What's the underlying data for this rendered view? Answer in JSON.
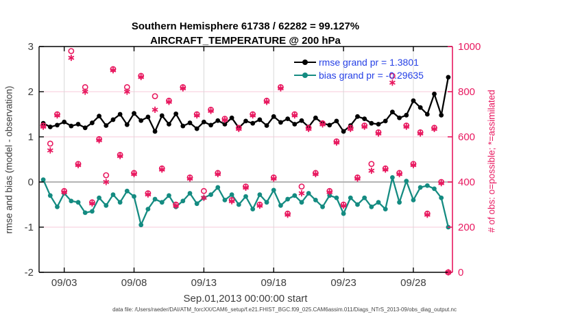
{
  "title": {
    "line1": "Southern Hemisphere 61738 / 62282 = 99.127%",
    "line2": "AIRCRAFT_TEMPERATURE @ 200 hPa"
  },
  "footer": {
    "data_file": "data file: /Users/raeder/DAI/ATM_forcXX/CAM6_setup/f.e21.FHIST_BGC.f09_025.CAM6assim.011/Diags_NTrS_2013-09/obs_diag_output.nc"
  },
  "colors": {
    "rmse": "#000000",
    "bias": "#148b81",
    "obs_pink": "#e8185f",
    "legend_text": "#2540e6",
    "grid_pink": "#f7c9d9",
    "grid_gray": "#d8d8d8",
    "zero_line": "#b3b3b3",
    "tick_text": "#3c3c3c"
  },
  "legend": {
    "items": [
      {
        "name": "rmse",
        "label": "rmse grand pr = 1.3801"
      },
      {
        "name": "bias",
        "label": "bias grand pr = -0.29635"
      }
    ]
  },
  "chart_data": {
    "type": "line",
    "title": "Southern Hemisphere 61738 / 62282 = 99.127% | AIRCRAFT_TEMPERATURE @ 200 hPa",
    "x_axis": {
      "label": "Sep.01,2013 00:00:00 start",
      "tick_labels": [
        "09/03",
        "09/08",
        "09/13",
        "09/18",
        "09/23",
        "09/28"
      ],
      "tick_days": [
        2,
        7,
        12,
        17,
        22,
        27
      ],
      "domain_days": [
        0.2,
        29.8
      ],
      "x_start_day": 0.5,
      "x_step_day": 0.5
    },
    "y_left": {
      "label": "rmse and bias (model - observation)",
      "ticks": [
        3,
        2,
        1,
        0,
        -1,
        -2
      ],
      "range": [
        -2,
        3
      ]
    },
    "y_right": {
      "label": "# of obs: o=possible; *=assimilated",
      "ticks": [
        1000,
        800,
        600,
        400,
        200,
        0
      ],
      "range": [
        0,
        1000
      ]
    },
    "series": [
      {
        "name": "rmse",
        "axis": "left",
        "marker": "dot",
        "values": [
          1.3,
          1.22,
          1.26,
          1.33,
          1.24,
          1.28,
          1.2,
          1.31,
          1.46,
          1.25,
          1.38,
          1.5,
          1.27,
          1.52,
          1.36,
          1.44,
          1.12,
          1.47,
          1.28,
          1.51,
          1.24,
          1.31,
          1.18,
          1.33,
          1.26,
          1.36,
          1.28,
          1.42,
          1.2,
          1.35,
          1.3,
          1.38,
          1.25,
          1.45,
          1.32,
          1.4,
          1.28,
          1.36,
          1.22,
          1.42,
          1.3,
          1.26,
          1.35,
          1.12,
          1.25,
          1.45,
          1.4,
          1.3,
          1.28,
          1.35,
          1.55,
          1.42,
          1.48,
          1.8,
          1.65,
          1.5,
          1.95,
          1.48,
          2.32
        ]
      },
      {
        "name": "bias",
        "axis": "left",
        "marker": "dot",
        "values": [
          0.05,
          -0.3,
          -0.55,
          -0.25,
          -0.42,
          -0.45,
          -0.68,
          -0.65,
          -0.35,
          -0.52,
          -0.28,
          -0.45,
          -0.2,
          -0.32,
          -0.95,
          -0.6,
          -0.38,
          -0.45,
          -0.3,
          -0.55,
          -0.42,
          -0.25,
          -0.48,
          -0.35,
          -0.28,
          -0.12,
          -0.4,
          -0.28,
          -0.5,
          -0.32,
          -0.6,
          -0.28,
          -0.45,
          -0.18,
          -0.52,
          -0.38,
          -0.3,
          -0.45,
          -0.25,
          -0.4,
          -0.55,
          -0.3,
          -0.35,
          -0.7,
          -0.35,
          -0.5,
          -0.35,
          -0.55,
          -0.45,
          -0.6,
          0.1,
          -0.45,
          0.02,
          -0.4,
          -0.12,
          -0.08,
          -0.15,
          -0.35,
          -1.0
        ]
      },
      {
        "name": "possible",
        "axis": "right",
        "marker": "open-circle",
        "values": [
          650,
          570,
          700,
          360,
          980,
          480,
          820,
          310,
          590,
          430,
          900,
          520,
          820,
          440,
          870,
          350,
          780,
          460,
          760,
          300,
          820,
          420,
          700,
          360,
          720,
          440,
          680,
          320,
          640,
          380,
          700,
          300,
          760,
          420,
          820,
          260,
          700,
          380,
          640,
          440,
          660,
          360,
          580,
          300,
          640,
          420,
          650,
          480,
          620,
          460,
          870,
          440,
          650,
          480,
          620,
          260,
          640,
          400,
          0
        ]
      },
      {
        "name": "assimilated",
        "axis": "right",
        "marker": "asterisk",
        "values": [
          645,
          540,
          695,
          355,
          950,
          475,
          800,
          305,
          585,
          400,
          895,
          515,
          800,
          435,
          865,
          345,
          720,
          455,
          755,
          295,
          815,
          415,
          695,
          330,
          715,
          435,
          675,
          315,
          635,
          375,
          695,
          295,
          755,
          415,
          815,
          255,
          695,
          350,
          635,
          435,
          655,
          355,
          575,
          295,
          635,
          415,
          645,
          450,
          615,
          455,
          840,
          435,
          645,
          475,
          615,
          255,
          635,
          395,
          0
        ]
      }
    ]
  }
}
